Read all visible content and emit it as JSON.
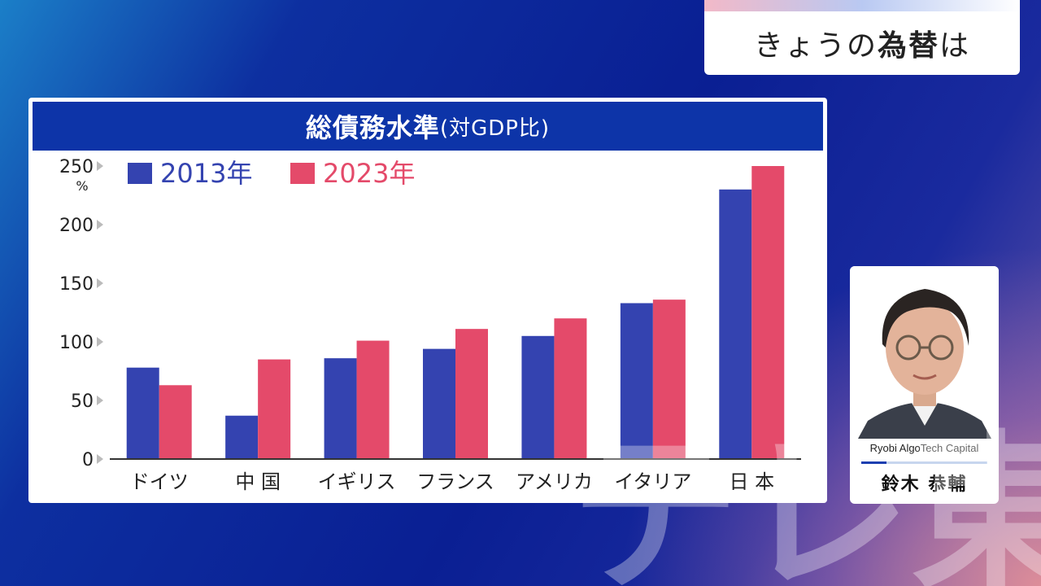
{
  "topic": {
    "prefix": "きょうの",
    "emphasis": "為替",
    "suffix": "は"
  },
  "chart_data": {
    "type": "bar",
    "title": "総債務水準",
    "subtitle": "(対GDP比)",
    "ylabel": "%",
    "ylim": [
      0,
      250
    ],
    "yticks": [
      0,
      50,
      100,
      150,
      200,
      250
    ],
    "categories": [
      "ドイツ",
      "中 国",
      "イギリス",
      "フランス",
      "アメリカ",
      "イタリア",
      "日 本"
    ],
    "series": [
      {
        "name": "2013年",
        "color": "#3443b0",
        "values": [
          78,
          37,
          86,
          94,
          105,
          133,
          230
        ]
      },
      {
        "name": "2023年",
        "color": "#e44a6a",
        "values": [
          63,
          85,
          101,
          111,
          120,
          136,
          250
        ]
      }
    ],
    "legend": "top-left",
    "grid": false
  },
  "person": {
    "company": "Ryobi AlgoTech Capital",
    "name": "鈴木 恭輔"
  },
  "watermark": {
    "text": "テレ東"
  }
}
